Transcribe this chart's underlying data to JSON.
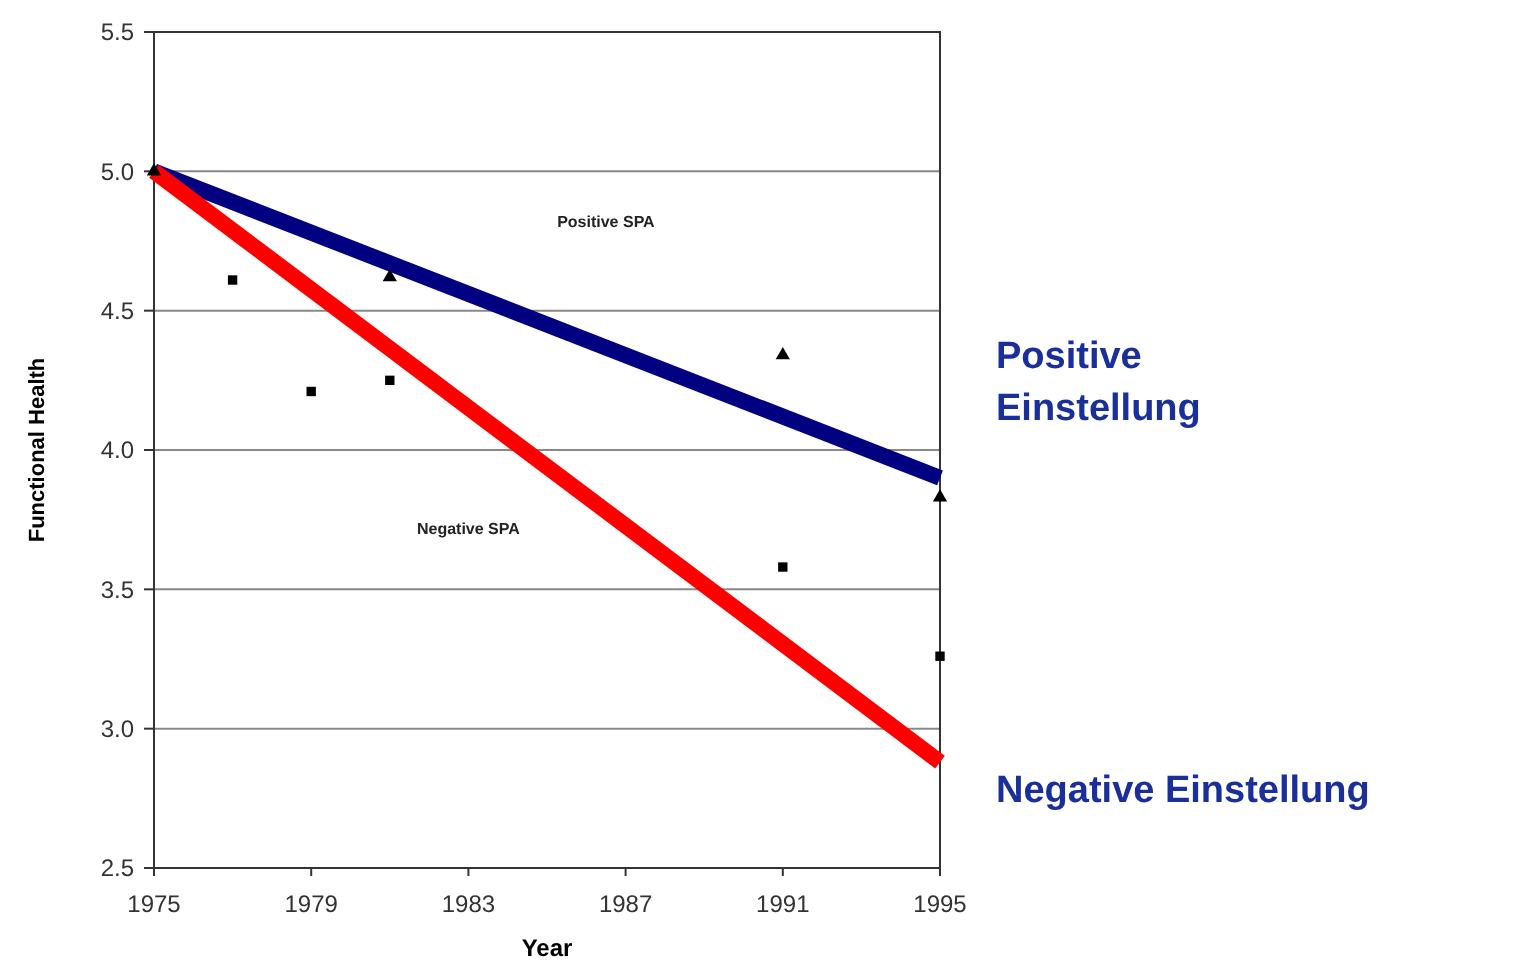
{
  "chart_data": {
    "type": "line",
    "xlabel": "Year",
    "ylabel": "Functional Health",
    "xlim": [
      1975,
      1995
    ],
    "xticks": [
      1975,
      1979,
      1983,
      1987,
      1991,
      1995
    ],
    "ylim": [
      2.5,
      5.5
    ],
    "yticks": [
      {
        "value": 2.5,
        "label": "2.5"
      },
      {
        "value": 3,
        "label": "3.0"
      },
      {
        "value": 3.5,
        "label": "3.5"
      },
      {
        "value": 4,
        "label": "4.0"
      },
      {
        "value": 4.5,
        "label": "4.5"
      },
      {
        "value": 5,
        "label": "5.0"
      },
      {
        "value": 5.5,
        "label": "5.5"
      }
    ],
    "grid": "y",
    "line_style": "solid",
    "annotations": [
      "Positive SPA",
      "Negative SPA"
    ],
    "series": [
      {
        "name": "Positive Einstellung",
        "color": "#000080",
        "x": [
          1975,
          1995
        ],
        "values": [
          5.0,
          3.9
        ]
      },
      {
        "name": "Negative Einstellung",
        "color": "#ff0000",
        "x": [
          1975,
          1995
        ],
        "values": [
          5.0,
          2.88
        ]
      },
      {
        "type": "scatter",
        "color": "#000000",
        "marker": "triangle",
        "x": [
          1975,
          1981,
          1991,
          1995
        ],
        "values": [
          5.0,
          4.62,
          4.34,
          3.83
        ]
      },
      {
        "type": "scatter",
        "color": "#000000",
        "marker": "square",
        "x": [
          1977,
          1979,
          1981,
          1991,
          1995
        ],
        "values": [
          4.61,
          4.21,
          4.25,
          3.58,
          3.26
        ]
      }
    ]
  }
}
